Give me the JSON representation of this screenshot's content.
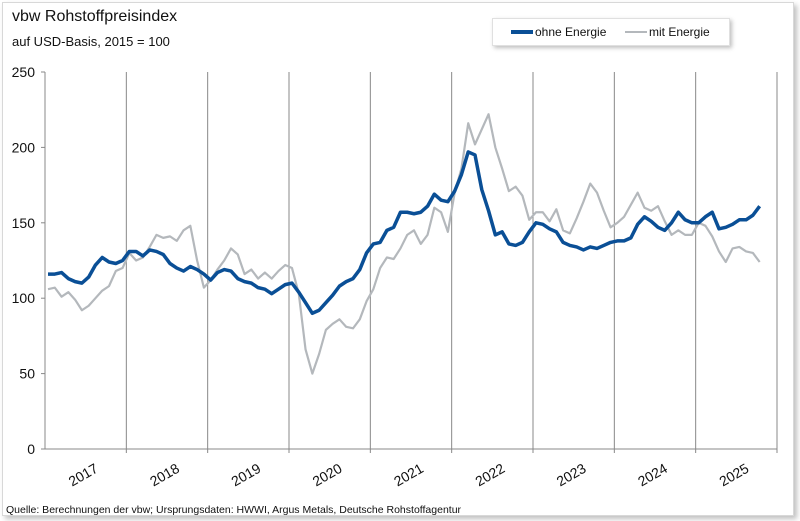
{
  "chart_data": {
    "type": "line",
    "title": "vbw Rohstoffpreisindex",
    "subtitle": "auf USD-Basis, 2015 = 100",
    "source": "Quelle: Berechnungen der vbw; Ursprungsdaten: HWWI, Argus Metals, Deutsche Rohstoffagentur",
    "xlabel": "",
    "ylabel": "",
    "ylim": [
      0,
      250
    ],
    "yticks": [
      "0",
      "50",
      "100",
      "150",
      "200",
      "250"
    ],
    "x_tick_labels": [
      "2017",
      "2018",
      "2019",
      "2020",
      "2021",
      "2022",
      "2023",
      "2024",
      "2025"
    ],
    "x_frequency": "monthly",
    "x_start": "2017-01",
    "grid": "vertical year separators",
    "legend_position": "top-right",
    "series": [
      {
        "name": "ohne Energie",
        "color": "#0a4f96",
        "values": [
          116,
          116,
          117,
          113,
          111,
          110,
          114,
          122,
          127,
          124,
          123,
          125,
          131,
          131,
          128,
          132,
          131,
          129,
          123,
          120,
          118,
          121,
          119,
          116,
          112,
          117,
          119,
          118,
          113,
          111,
          110,
          107,
          106,
          103,
          106,
          109,
          110,
          104,
          97,
          90,
          92,
          97,
          102,
          108,
          111,
          113,
          119,
          130,
          136,
          137,
          145,
          147,
          157,
          157,
          156,
          157,
          161,
          169,
          165,
          164,
          171,
          182,
          197,
          195,
          172,
          158,
          142,
          144,
          136,
          135,
          137,
          144,
          150,
          149,
          146,
          144,
          137,
          135,
          134,
          132,
          134,
          133,
          135,
          137,
          138,
          138,
          140,
          149,
          154,
          151,
          147,
          145,
          150,
          157,
          152,
          150,
          150,
          154,
          157,
          146,
          147,
          149,
          152,
          152,
          155,
          161
        ]
      },
      {
        "name": "mit Energie",
        "color": "#b4b8bc",
        "values": [
          106,
          107,
          101,
          104,
          99,
          92,
          95,
          100,
          105,
          108,
          118,
          120,
          130,
          125,
          127,
          134,
          142,
          140,
          141,
          138,
          145,
          148,
          125,
          107,
          112,
          119,
          125,
          133,
          129,
          116,
          119,
          113,
          117,
          113,
          118,
          122,
          120,
          103,
          66,
          50,
          63,
          79,
          83,
          86,
          81,
          80,
          86,
          98,
          106,
          120,
          127,
          126,
          133,
          142,
          145,
          136,
          142,
          160,
          157,
          144,
          170,
          186,
          216,
          202,
          212,
          222,
          200,
          186,
          171,
          174,
          168,
          152,
          157,
          157,
          151,
          159,
          145,
          143,
          153,
          164,
          176,
          170,
          158,
          147,
          150,
          154,
          162,
          170,
          160,
          158,
          161,
          151,
          142,
          145,
          142,
          142,
          150,
          148,
          141,
          131,
          124,
          133,
          134,
          131,
          130,
          124
        ]
      }
    ]
  }
}
